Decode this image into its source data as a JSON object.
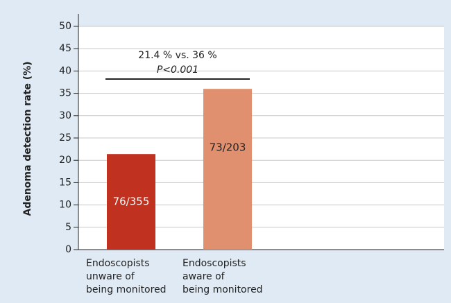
{
  "chart_data": {
    "type": "bar",
    "y_label": "Adenoma detection rate (%)",
    "categories": [
      [
        "Endoscopists",
        "unware of",
        "being monitored"
      ],
      [
        "Endoscopists",
        "aware of",
        "being monitored"
      ]
    ],
    "values": [
      21.4,
      36
    ],
    "value_labels": [
      "76/355",
      "73/203"
    ],
    "colors": [
      "#c0321f",
      "#e0906e"
    ],
    "label_colors": [
      "#ffffff",
      "#222222"
    ],
    "annotation": [
      "21.4 % vs. 36 %",
      "P<0.001"
    ],
    "ylim": [
      0,
      50
    ],
    "yticks": [
      0,
      5,
      10,
      15,
      20,
      25,
      30,
      35,
      40,
      45,
      50
    ],
    "grid": true
  }
}
